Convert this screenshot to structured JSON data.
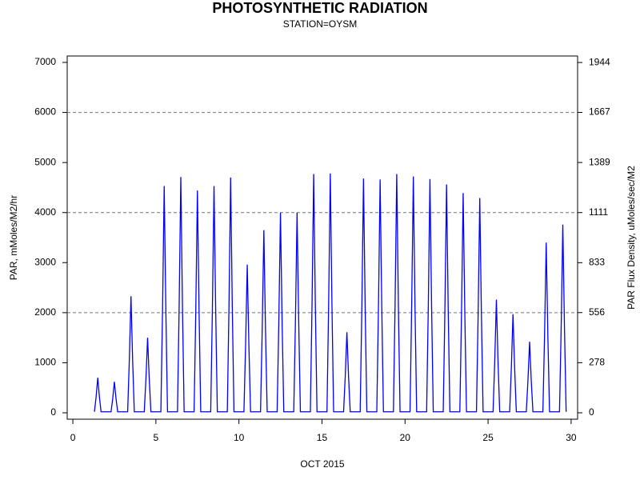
{
  "chart_data": {
    "type": "line",
    "title": "PHOTOSYNTHETIC RADIATION",
    "subtitle": "STATION=OYSM",
    "x_label": "OCT 2015",
    "y_label": "PAR, mMoles/M2/hr",
    "y2_label": "PAR Flux Density, uMoles/sec/M2",
    "xlim": [
      -0.34,
      30.39
    ],
    "xticks": [
      0,
      5,
      10,
      15,
      20,
      25,
      30
    ],
    "ylim": [
      -128,
      7128
    ],
    "yticks": [
      0,
      1000,
      2000,
      3000,
      4000,
      5000,
      6000,
      7000
    ],
    "y2lim": [
      -35.6,
      1980
    ],
    "y2ticks": [
      0,
      278,
      556,
      833,
      1111,
      1389,
      1667,
      1944
    ],
    "ygrid": [
      2000,
      4000,
      6000
    ],
    "series": [
      {
        "color": "#0000ff",
        "x": [
          1.3,
          1.4,
          1.5,
          1.6,
          1.7,
          2.3,
          2.4,
          2.5,
          2.6,
          2.7,
          3.3,
          3.4,
          3.5,
          3.6,
          3.7,
          4.3,
          4.4,
          4.5,
          4.6,
          4.7,
          5.3,
          5.4,
          5.5,
          5.6,
          5.7,
          6.3,
          6.4,
          6.5,
          6.6,
          6.7,
          7.3,
          7.4,
          7.5,
          7.6,
          7.7,
          8.3,
          8.4,
          8.5,
          8.6,
          8.7,
          9.3,
          9.4,
          9.5,
          9.6,
          9.7,
          10.3,
          10.4,
          10.5,
          10.6,
          10.7,
          11.3,
          11.4,
          11.5,
          11.6,
          11.7,
          12.3,
          12.4,
          12.5,
          12.6,
          12.7,
          13.3,
          13.4,
          13.5,
          13.6,
          13.7,
          14.3,
          14.4,
          14.5,
          14.6,
          14.7,
          15.3,
          15.4,
          15.5,
          15.6,
          15.7,
          16.3,
          16.4,
          16.5,
          16.6,
          16.7,
          17.3,
          17.4,
          17.5,
          17.6,
          17.7,
          18.3,
          18.4,
          18.5,
          18.6,
          18.7,
          19.3,
          19.4,
          19.5,
          19.6,
          19.7,
          20.3,
          20.4,
          20.5,
          20.6,
          20.7,
          21.3,
          21.4,
          21.5,
          21.6,
          21.7,
          22.3,
          22.4,
          22.5,
          22.6,
          22.7,
          23.3,
          23.4,
          23.5,
          23.6,
          23.7,
          24.3,
          24.4,
          24.5,
          24.6,
          24.7,
          25.3,
          25.4,
          25.5,
          25.6,
          25.7,
          26.3,
          26.4,
          26.5,
          26.6,
          26.7,
          27.3,
          27.4,
          27.5,
          27.6,
          27.7,
          28.3,
          28.4,
          28.5,
          28.6,
          28.7,
          29.3,
          29.4,
          29.5,
          29.6,
          29.7
        ],
        "values": [
          20,
          315,
          700,
          315,
          20,
          20,
          279,
          620,
          279,
          20,
          20,
          1049,
          2330,
          1049,
          20,
          20,
          675,
          1500,
          675,
          20,
          20,
          2039,
          4530,
          2039,
          20,
          20,
          2120,
          4710,
          2120,
          20,
          20,
          1998,
          4440,
          1998,
          20,
          20,
          2039,
          4530,
          2039,
          20,
          20,
          2115,
          4700,
          2115,
          20,
          20,
          1332,
          2960,
          1332,
          20,
          20,
          1643,
          3650,
          1643,
          20,
          20,
          1800,
          4000,
          1800,
          20,
          20,
          1800,
          4000,
          1800,
          20,
          20,
          2147,
          4770,
          2147,
          20,
          20,
          2151,
          4780,
          2151,
          20,
          20,
          725,
          1610,
          725,
          20,
          20,
          2106,
          4680,
          2106,
          20,
          20,
          2097,
          4660,
          2097,
          20,
          20,
          2147,
          4770,
          2147,
          20,
          20,
          2124,
          4720,
          2124,
          20,
          20,
          2102,
          4670,
          2102,
          20,
          20,
          2052,
          4560,
          2052,
          20,
          20,
          1976,
          4390,
          1976,
          20,
          20,
          1931,
          4290,
          1931,
          20,
          20,
          1017,
          2260,
          1017,
          20,
          20,
          887,
          1970,
          887,
          20,
          20,
          639,
          1420,
          639,
          20,
          20,
          1530,
          3400,
          1530,
          20,
          20,
          1692,
          3760,
          1692,
          20
        ]
      }
    ]
  }
}
